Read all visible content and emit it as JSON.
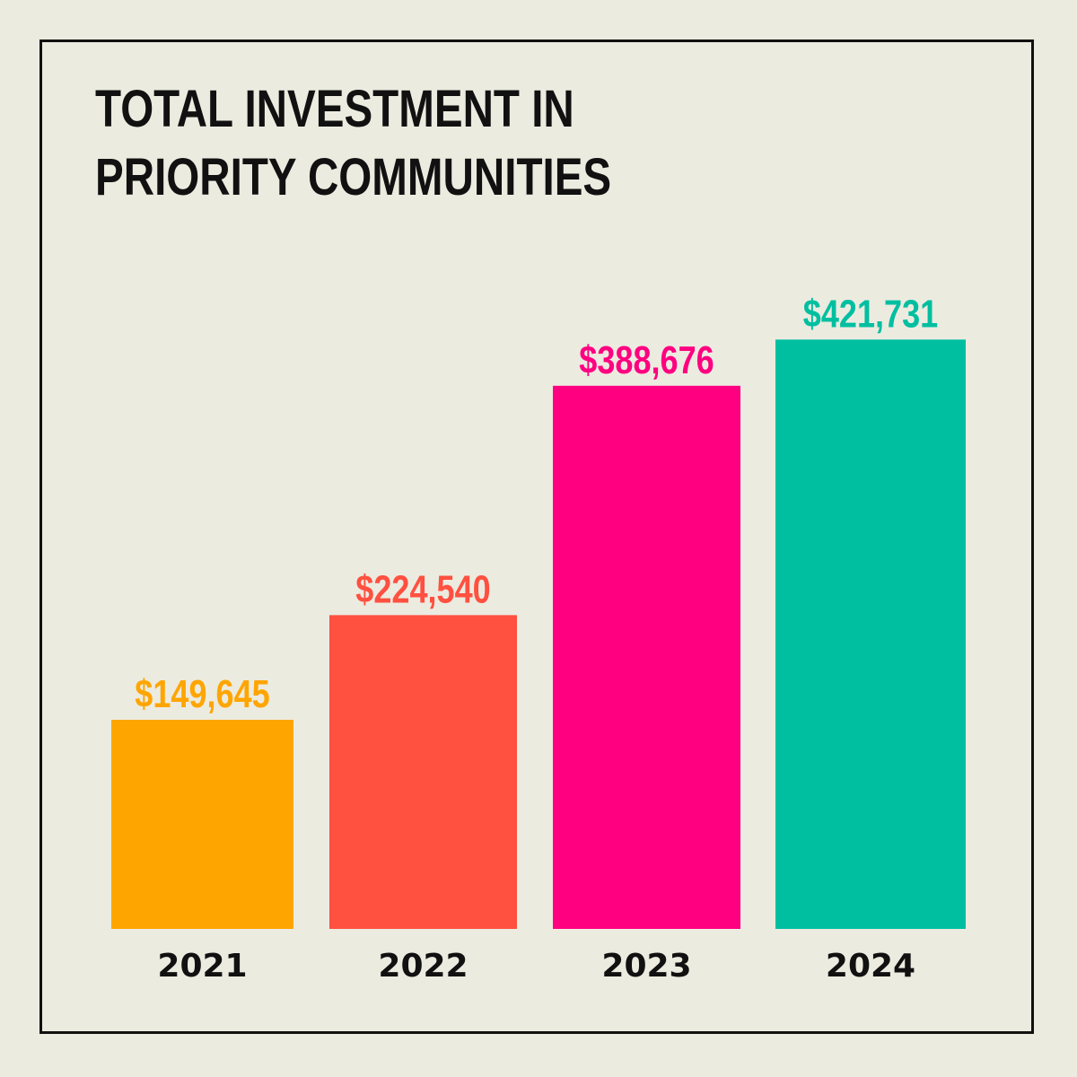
{
  "chart_data": {
    "type": "bar",
    "title_lines": [
      "TOTAL INVESTMENT IN",
      "PRIORITY COMMUNITIES"
    ],
    "categories": [
      "2021",
      "2022",
      "2023",
      "2024"
    ],
    "values": [
      149645,
      224540,
      388676,
      421731
    ],
    "value_labels": [
      "$149,645",
      "$224,540",
      "$388,676",
      "$421,731"
    ],
    "colors": [
      "#FFA500",
      "#FF5040",
      "#FF0080",
      "#00BFA0"
    ],
    "xlabel": "",
    "ylabel": "",
    "ylim": [
      0,
      460000
    ],
    "grid": false,
    "legend": "none"
  }
}
